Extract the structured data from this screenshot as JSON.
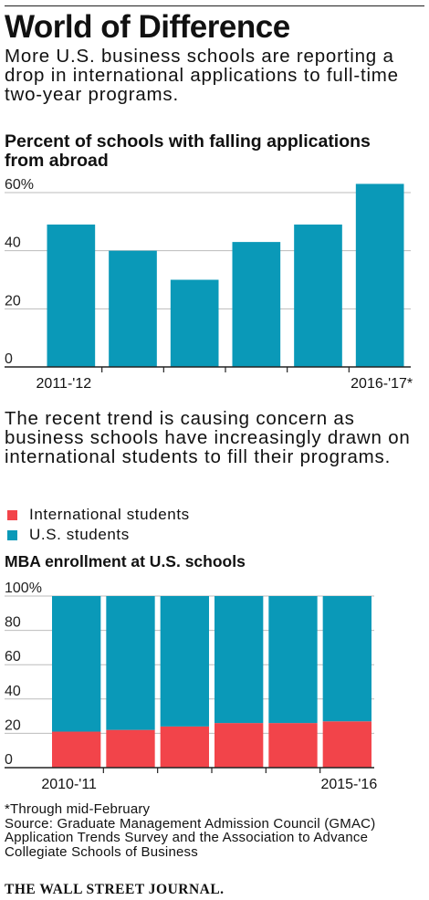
{
  "title": "World of Difference",
  "intro": "More U.S. business schools are reporting a drop in international applications to full-time two-year programs.",
  "middle_text": "The recent trend is causing concern as business schools have increasingly drawn on international students to fill their programs.",
  "colors": {
    "teal": "#0A99B8",
    "red": "#F2444A",
    "axis": "#222222",
    "grid": "#bbbbbb"
  },
  "legend": [
    {
      "label": "International students",
      "color": "#F2444A"
    },
    {
      "label": "U.S. students",
      "color": "#0A99B8"
    }
  ],
  "footnote": "*Through mid-February",
  "source": "Source: Graduate Management Admission Council (GMAC) Application Trends Survey and the Association to Advance Collegiate Schools of Business",
  "credit": "THE WALL STREET JOURNAL.",
  "chart_data": [
    {
      "type": "bar",
      "title": "Percent of schools with falling applications from abroad",
      "categories": [
        "2011-'12",
        "",
        "",
        "",
        "",
        "2016-'17*"
      ],
      "values": [
        49,
        40,
        30,
        43,
        49,
        63
      ],
      "ylim": [
        0,
        60
      ],
      "yticks": [
        "0",
        "20",
        "40",
        "60%"
      ],
      "grid": true,
      "color": "#0A99B8"
    },
    {
      "type": "bar",
      "stacked": true,
      "title": "MBA enrollment at U.S. schools",
      "categories": [
        "2010-'11",
        "",
        "",
        "",
        "",
        "2015-'16"
      ],
      "series": [
        {
          "name": "International students",
          "values": [
            21,
            22,
            24,
            26,
            26,
            27
          ],
          "color": "#F2444A"
        },
        {
          "name": "U.S. students",
          "values": [
            79,
            78,
            76,
            74,
            74,
            73
          ],
          "color": "#0A99B8"
        }
      ],
      "ylim": [
        0,
        100
      ],
      "yticks": [
        "0",
        "20",
        "40",
        "60",
        "80",
        "100%"
      ],
      "grid": true
    }
  ]
}
